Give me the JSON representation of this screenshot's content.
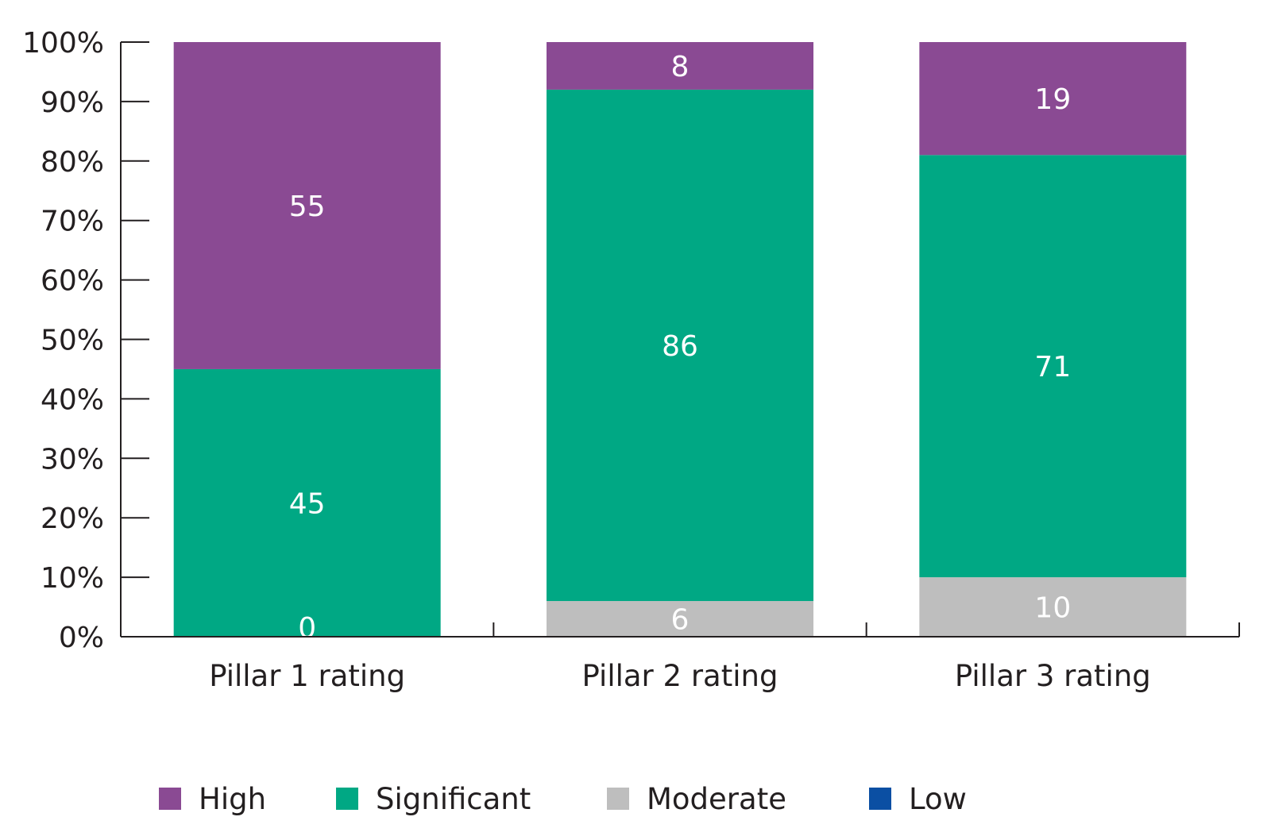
{
  "chart_data": {
    "type": "bar",
    "stacked": true,
    "categories": [
      "Pillar 1 rating",
      "Pillar 2 rating",
      "Pillar 3 rating"
    ],
    "series": [
      {
        "name": "High",
        "color": "#8a4a93",
        "values": [
          55,
          8,
          19
        ],
        "labels": [
          "55",
          "8",
          "19"
        ]
      },
      {
        "name": "Significant",
        "color": "#00a884",
        "values": [
          45,
          86,
          71
        ],
        "labels": [
          "45",
          "86",
          "71"
        ]
      },
      {
        "name": "Moderate",
        "color": "#bebebe",
        "values": [
          0,
          6,
          10
        ],
        "labels": [
          "0",
          "6",
          "10"
        ]
      },
      {
        "name": "Low",
        "color": "#0b4fa3",
        "values": [
          0,
          0,
          0
        ],
        "labels": [
          "",
          "",
          ""
        ]
      }
    ],
    "stack_order": [
      "Low",
      "Moderate",
      "Significant",
      "High"
    ],
    "ylim": [
      0,
      100
    ],
    "yticks": [
      "0%",
      "10%",
      "20%",
      "30%",
      "40%",
      "50%",
      "60%",
      "70%",
      "80%",
      "90%",
      "100%"
    ],
    "grid": false,
    "legend_position": "bottom"
  }
}
